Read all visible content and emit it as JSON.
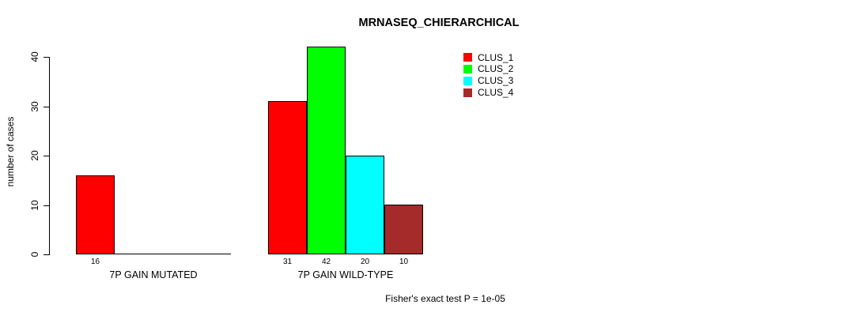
{
  "chart_data": {
    "type": "bar",
    "title": "MRNASEQ_CHIERARCHICAL",
    "ylabel": "number of cases",
    "xlabel": "",
    "categories": [
      "7P GAIN MUTATED",
      "7P GAIN WILD-TYPE"
    ],
    "series": [
      {
        "name": "CLUS_1",
        "color": "#ff0000",
        "values": [
          16,
          31
        ]
      },
      {
        "name": "CLUS_2",
        "color": "#00ff00",
        "values": [
          0,
          42
        ]
      },
      {
        "name": "CLUS_3",
        "color": "#00ffff",
        "values": [
          0,
          20
        ]
      },
      {
        "name": "CLUS_4",
        "color": "#a52a2a",
        "values": [
          0,
          10
        ]
      }
    ],
    "bar_value_labels": [
      [
        "16",
        null,
        null,
        null
      ],
      [
        "31",
        "42",
        "20",
        "10"
      ]
    ],
    "yticks": [
      0,
      10,
      20,
      30,
      40
    ],
    "ylim": [
      0,
      42
    ],
    "grid": false,
    "legend_position": "top-right",
    "annotation": "Fisher's exact test P = 1e-05",
    "axis_color": "#000000",
    "background_color": "#ffffff"
  }
}
